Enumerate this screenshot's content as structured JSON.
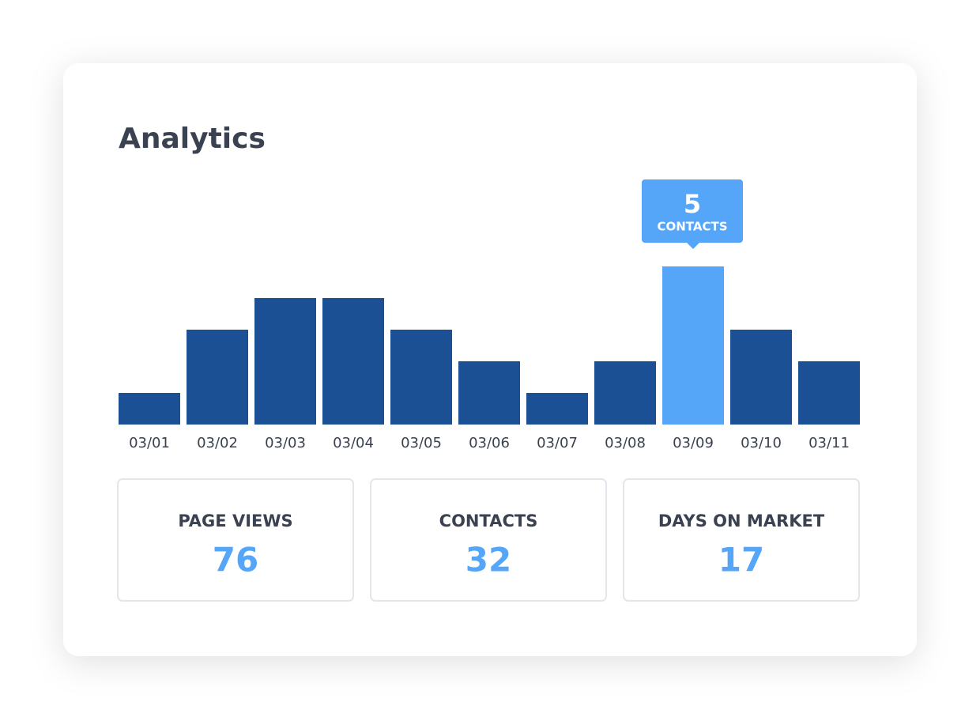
{
  "title": "Analytics",
  "chart_data": {
    "type": "bar",
    "categories": [
      "03/01",
      "03/02",
      "03/03",
      "03/04",
      "03/05",
      "03/06",
      "03/07",
      "03/08",
      "03/09",
      "03/10",
      "03/11"
    ],
    "values": [
      1,
      3,
      4,
      4,
      3,
      2,
      1,
      2,
      5,
      3,
      2
    ],
    "color": "#1c5095",
    "highlight": 8,
    "highlight_color": "#55a6f8",
    "tooltip_label": "CONTACTS"
  },
  "stats": [
    {
      "label": "PAGE VIEWS",
      "value": 76
    },
    {
      "label": "CONTACTS",
      "value": 32
    },
    {
      "label": "DAYS ON MARKET",
      "value": 17
    }
  ]
}
